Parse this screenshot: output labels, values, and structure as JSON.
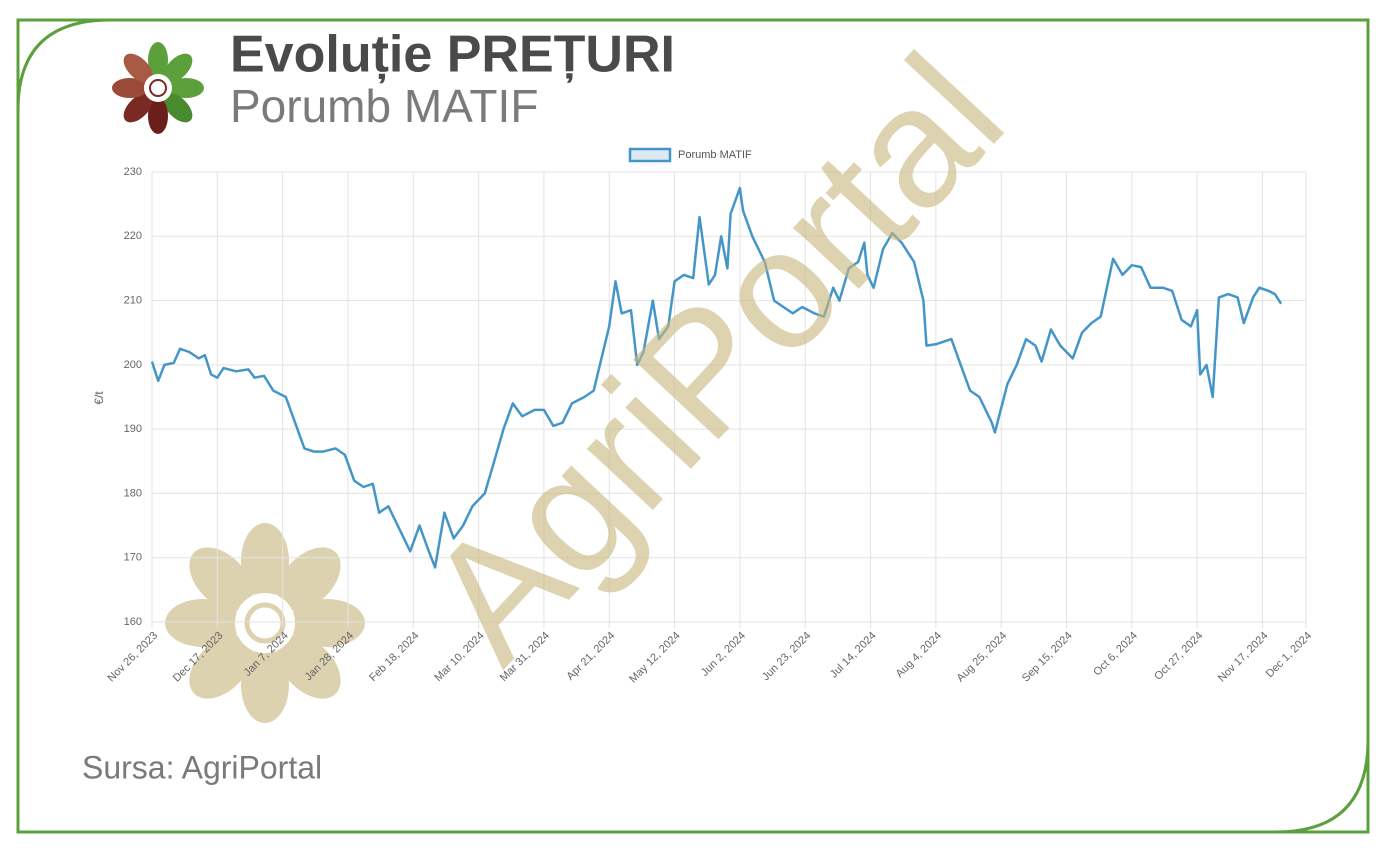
{
  "chart_data": {
    "type": "line",
    "title": "Evoluție PREȚURI",
    "subtitle": "Porumb MATIF",
    "y_label": "€/t",
    "source": "Sursa: AgriPortal",
    "watermark": "AgriPortal",
    "grid": true,
    "legend": "top",
    "xlim": [
      "2023-11-26",
      "2024-12-01"
    ],
    "xticks": [
      {
        "value": "2023-11-26",
        "label": "Nov 26, 2023"
      },
      {
        "value": "2023-12-17",
        "label": "Dec 17, 2023"
      },
      {
        "value": "2024-01-07",
        "label": "Jan 7, 2024"
      },
      {
        "value": "2024-01-28",
        "label": "Jan 28, 2024"
      },
      {
        "value": "2024-02-18",
        "label": "Feb 18, 2024"
      },
      {
        "value": "2024-03-10",
        "label": "Mar 10, 2024"
      },
      {
        "value": "2024-03-31",
        "label": "Mar 31, 2024"
      },
      {
        "value": "2024-04-21",
        "label": "Apr 21, 2024"
      },
      {
        "value": "2024-05-12",
        "label": "May 12, 2024"
      },
      {
        "value": "2024-06-02",
        "label": "Jun 2, 2024"
      },
      {
        "value": "2024-06-23",
        "label": "Jun 23, 2024"
      },
      {
        "value": "2024-07-14",
        "label": "Jul 14, 2024"
      },
      {
        "value": "2024-08-04",
        "label": "Aug 4, 2024"
      },
      {
        "value": "2024-08-25",
        "label": "Aug 25, 2024"
      },
      {
        "value": "2024-09-15",
        "label": "Sep 15, 2024"
      },
      {
        "value": "2024-10-06",
        "label": "Oct 6, 2024"
      },
      {
        "value": "2024-10-27",
        "label": "Oct 27, 2024"
      },
      {
        "value": "2024-11-17",
        "label": "Nov 17, 2024"
      },
      {
        "value": "2024-12-01",
        "label": "Dec 1, 2024"
      }
    ],
    "ylim": [
      160,
      230
    ],
    "yticks": [
      160,
      170,
      180,
      190,
      200,
      210,
      220,
      230
    ],
    "x": [
      "2023-11-26",
      "2023-11-28",
      "2023-11-30",
      "2023-12-03",
      "2023-12-05",
      "2023-12-08",
      "2023-12-11",
      "2023-12-13",
      "2023-12-15",
      "2023-12-17",
      "2023-12-19",
      "2023-12-23",
      "2023-12-27",
      "2023-12-29",
      "2024-01-01",
      "2024-01-04",
      "2024-01-08",
      "2024-01-11",
      "2024-01-14",
      "2024-01-17",
      "2024-01-20",
      "2024-01-24",
      "2024-01-27",
      "2024-01-30",
      "2024-02-02",
      "2024-02-05",
      "2024-02-07",
      "2024-02-10",
      "2024-02-13",
      "2024-02-17",
      "2024-02-20",
      "2024-02-23",
      "2024-02-25",
      "2024-02-28",
      "2024-03-02",
      "2024-03-05",
      "2024-03-08",
      "2024-03-12",
      "2024-03-15",
      "2024-03-18",
      "2024-03-21",
      "2024-03-24",
      "2024-03-28",
      "2024-03-31",
      "2024-04-03",
      "2024-04-06",
      "2024-04-09",
      "2024-04-13",
      "2024-04-16",
      "2024-04-19",
      "2024-04-21",
      "2024-04-23",
      "2024-04-25",
      "2024-04-28",
      "2024-04-30",
      "2024-05-02",
      "2024-05-05",
      "2024-05-07",
      "2024-05-10",
      "2024-05-12",
      "2024-05-15",
      "2024-05-18",
      "2024-05-20",
      "2024-05-23",
      "2024-05-25",
      "2024-05-27",
      "2024-05-29",
      "2024-05-30",
      "2024-06-02",
      "2024-06-03",
      "2024-06-06",
      "2024-06-10",
      "2024-06-13",
      "2024-06-16",
      "2024-06-19",
      "2024-06-22",
      "2024-06-26",
      "2024-06-29",
      "2024-07-02",
      "2024-07-04",
      "2024-07-07",
      "2024-07-10",
      "2024-07-12",
      "2024-07-13",
      "2024-07-15",
      "2024-07-18",
      "2024-07-21",
      "2024-07-24",
      "2024-07-28",
      "2024-07-31",
      "2024-08-01",
      "2024-08-04",
      "2024-08-09",
      "2024-08-12",
      "2024-08-15",
      "2024-08-18",
      "2024-08-22",
      "2024-08-23",
      "2024-08-27",
      "2024-08-30",
      "2024-09-02",
      "2024-09-05",
      "2024-09-07",
      "2024-09-10",
      "2024-09-13",
      "2024-09-17",
      "2024-09-20",
      "2024-09-23",
      "2024-09-26",
      "2024-09-30",
      "2024-10-03",
      "2024-10-06",
      "2024-10-09",
      "2024-10-12",
      "2024-10-16",
      "2024-10-19",
      "2024-10-22",
      "2024-10-25",
      "2024-10-27",
      "2024-10-28",
      "2024-10-30",
      "2024-11-01",
      "2024-11-03",
      "2024-11-06",
      "2024-11-09",
      "2024-11-11",
      "2024-11-14",
      "2024-11-16",
      "2024-11-19",
      "2024-11-21",
      "2024-11-23"
    ],
    "series": [
      {
        "name": "Porumb MATIF",
        "color": "#4596c8",
        "values": [
          200.5,
          197.5,
          200,
          200.3,
          202.5,
          202,
          201,
          201.5,
          198.5,
          198,
          199.5,
          199,
          199.3,
          198,
          198.3,
          196,
          195,
          191,
          187,
          186.5,
          186.5,
          187,
          186,
          182,
          181,
          181.5,
          177,
          178,
          175,
          171,
          175,
          171,
          168.5,
          177,
          173,
          175,
          178,
          180,
          185,
          190,
          194,
          192,
          193,
          193,
          190.5,
          191,
          194,
          195,
          196,
          202,
          206,
          213,
          208,
          208.5,
          200,
          202,
          210,
          204,
          206,
          213,
          214,
          213.5,
          223,
          212.5,
          214,
          220,
          215,
          223.5,
          227.5,
          224,
          220,
          216,
          210,
          209,
          208,
          209,
          208,
          207.5,
          212,
          210,
          215,
          216,
          219,
          214,
          212,
          218,
          220.5,
          219,
          216,
          210,
          203,
          203.2,
          204,
          200,
          196,
          195,
          191,
          189.5,
          197,
          200,
          204,
          203,
          200.5,
          205.5,
          203,
          201,
          205,
          206.5,
          207.5,
          216.5,
          214,
          215.5,
          215.2,
          212,
          212,
          211.5,
          207,
          206,
          208.5,
          198.5,
          200,
          195,
          210.5,
          211,
          210.5,
          206.5,
          210.5,
          212,
          211.5,
          211,
          209.5
        ]
      }
    ]
  }
}
